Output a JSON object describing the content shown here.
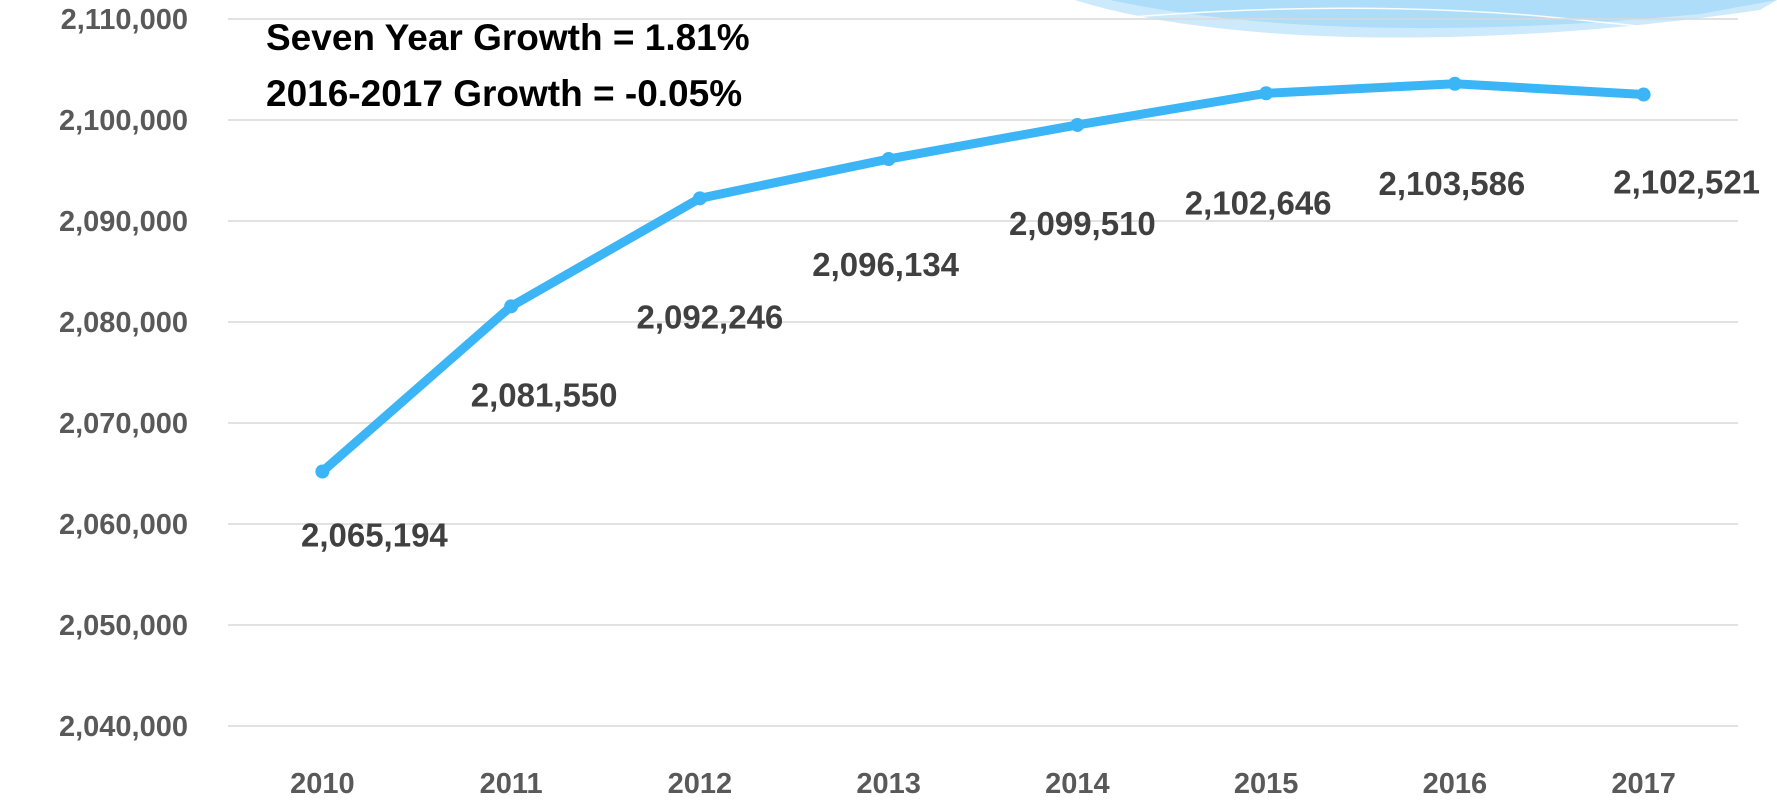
{
  "chart_data": {
    "type": "line",
    "title": "",
    "xlabel": "",
    "ylabel": "",
    "categories": [
      "2010",
      "2011",
      "2012",
      "2013",
      "2014",
      "2015",
      "2016",
      "2017"
    ],
    "series": [
      {
        "values": [
          2065194,
          2081550,
          2092246,
          2096134,
          2099510,
          2102646,
          2103586,
          2102521
        ],
        "color": "#3bb5f5"
      }
    ],
    "data_labels": [
      "2,065,194",
      "2,081,550",
      "2,092,246",
      "2,096,134",
      "2,099,510",
      "2,102,646",
      "2,103,586",
      "2,102,521"
    ],
    "ylim": [
      2040000,
      2110000
    ],
    "y_ticks": [
      2040000,
      2050000,
      2060000,
      2070000,
      2080000,
      2090000,
      2100000,
      2110000
    ],
    "y_tick_labels": [
      "2,040,000",
      "2,050,000",
      "2,060,000",
      "2,070,000",
      "2,080,000",
      "2,090,000",
      "2,100,000",
      "2,110,000"
    ],
    "grid": true,
    "legend": "none",
    "annotations": [
      "Seven Year Growth = 1.81%",
      "2016-2017 Growth = -0.05%"
    ]
  },
  "colors": {
    "line": "#3bb5f5",
    "grid": "#d9d9d9",
    "tick_text": "#595959",
    "label_text": "#404040",
    "decor_light": "#cdeafc",
    "decor_mid": "#a6d9f7"
  },
  "decor": {
    "icon": "wave-swoosh-icon"
  }
}
